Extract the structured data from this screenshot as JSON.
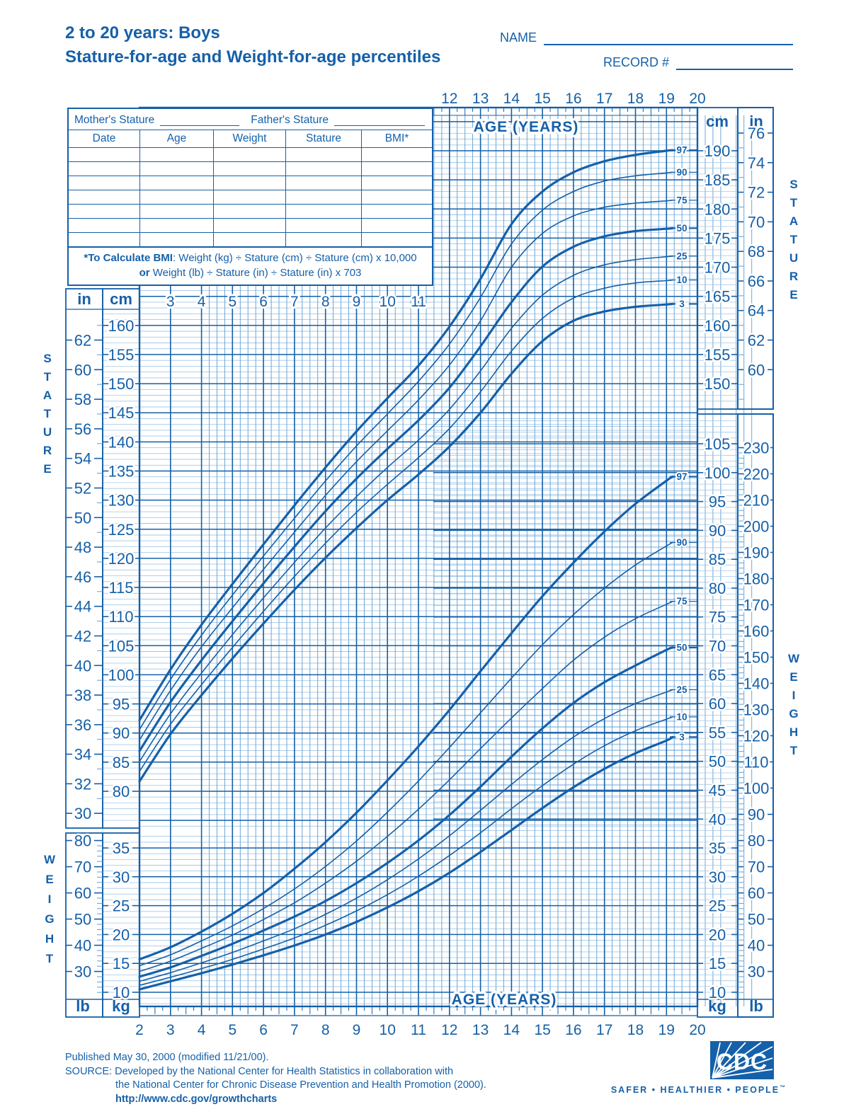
{
  "header": {
    "title_line1": "2 to 20 years: Boys",
    "title_line2": "Stature-for-age and Weight-for-age percentiles",
    "name_label": "NAME",
    "record_label": "RECORD #"
  },
  "patient_table": {
    "mothers_stature_label": "Mother's Stature",
    "fathers_stature_label": "Father's Stature",
    "columns": [
      "Date",
      "Age",
      "Weight",
      "Stature",
      "BMI*"
    ],
    "empty_row_count": 7,
    "bmi_note": {
      "bold1": "*To Calculate BMI",
      "rest1": ": Weight (kg) ÷ Stature (cm) ÷ Stature (cm) x 10,000",
      "bold2": "or",
      "rest2": " Weight (lb) ÷ Stature (in) ÷ Stature (in) x 703"
    }
  },
  "axis": {
    "age_label_top": "AGE (YEARS)",
    "age_label_bottom": "AGE (YEARS)",
    "stature_side_label": "STATURE",
    "weight_side_label": "WEIGHT",
    "units": {
      "cm": "cm",
      "in": "in",
      "kg": "kg",
      "lb": "lb"
    }
  },
  "footer": {
    "published": "Published May 30, 2000 (modified 11/21/00).",
    "source_line1": "SOURCE: Developed by the National Center for Health Statistics in collaboration with",
    "source_line2": "the National Center for Chronic Disease Prevention and Health Promotion (2000).",
    "url": "http://www.cdc.gov/growthcharts"
  },
  "logo": {
    "text": "CDC",
    "tagline": "SAFER • HEALTHIER • PEOPLE",
    "tm": "™"
  },
  "colors": {
    "ink": "#1560a9",
    "grid_minor_h": "#a3c8e8",
    "grid_minor_v": "#5d9dd2",
    "background": "#ffffff"
  },
  "chart_data": [
    {
      "type": "line",
      "title": "Stature-for-age percentiles, boys 2 to 20 years",
      "xlabel": "AGE (YEARS)",
      "ylabel": "STATURE",
      "x_range_years": [
        2,
        20
      ],
      "axes": {
        "top_ages": {
          "min": 12,
          "max": 20,
          "step": 1
        },
        "mid_ages": {
          "min": 3,
          "max": 11,
          "step": 1
        },
        "left_cm": {
          "min": 80,
          "max": 160,
          "step": 5
        },
        "left_in": {
          "min": 30,
          "max": 62,
          "step": 2
        },
        "right_cm": {
          "min": 150,
          "max": 190,
          "step": 5
        },
        "right_in": {
          "min": 60,
          "max": 76,
          "step": 2
        }
      },
      "ages": [
        2,
        3,
        4,
        5,
        6,
        7,
        8,
        9,
        10,
        11,
        12,
        13,
        14,
        15,
        16,
        17,
        18,
        19,
        19.2
      ],
      "series": [
        {
          "name": "97th percentile",
          "label": "97",
          "bold": true,
          "values_cm": [
            92.2,
            100.9,
            108.6,
            115.6,
            122.4,
            129.1,
            135.6,
            141.8,
            147.5,
            153.1,
            159.8,
            168.0,
            177.4,
            183.0,
            186.3,
            188.2,
            189.3,
            190.0,
            190.1
          ]
        },
        {
          "name": "90th percentile",
          "label": "90",
          "bold": false,
          "values_cm": [
            90.6,
            99.2,
            106.8,
            113.7,
            120.4,
            126.9,
            133.3,
            139.3,
            144.8,
            150.4,
            156.8,
            164.8,
            174.0,
            179.8,
            183.0,
            184.8,
            185.7,
            186.2,
            186.3
          ]
        },
        {
          "name": "75th percentile",
          "label": "75",
          "bold": false,
          "values_cm": [
            88.8,
            97.3,
            104.8,
            111.5,
            118.1,
            124.5,
            130.8,
            136.6,
            141.9,
            147.2,
            153.2,
            160.8,
            170.0,
            175.8,
            178.8,
            180.3,
            181.0,
            181.4,
            181.5
          ]
        },
        {
          "name": "50th percentile",
          "label": "50",
          "bold": true,
          "values_cm": [
            86.9,
            95.3,
            102.5,
            109.2,
            115.7,
            122.0,
            128.1,
            133.7,
            138.8,
            143.7,
            149.3,
            156.4,
            164.0,
            170.1,
            173.5,
            175.3,
            176.2,
            176.6,
            176.7
          ]
        },
        {
          "name": "25th percentile",
          "label": "25",
          "bold": false,
          "values_cm": [
            85.1,
            93.3,
            100.3,
            106.9,
            113.2,
            119.3,
            125.2,
            130.6,
            135.6,
            140.3,
            145.6,
            152.2,
            159.5,
            165.2,
            168.6,
            170.4,
            171.3,
            171.8,
            171.9
          ]
        },
        {
          "name": "10th percentile",
          "label": "10",
          "bold": false,
          "values_cm": [
            83.4,
            91.5,
            98.3,
            104.7,
            110.9,
            116.9,
            122.6,
            127.9,
            132.7,
            137.3,
            142.3,
            148.6,
            155.6,
            161.2,
            164.7,
            166.4,
            167.3,
            167.7,
            167.8
          ]
        },
        {
          "name": "3rd percentile",
          "label": "3",
          "bold": true,
          "values_cm": [
            81.7,
            89.8,
            96.5,
            102.8,
            108.8,
            114.6,
            120.1,
            125.2,
            130.0,
            134.4,
            139.2,
            145.0,
            151.7,
            157.3,
            160.8,
            162.4,
            163.2,
            163.6,
            163.7
          ]
        }
      ]
    },
    {
      "type": "line",
      "title": "Weight-for-age percentiles, boys 2 to 20 years",
      "xlabel": "AGE (YEARS)",
      "ylabel": "WEIGHT",
      "x_range_years": [
        2,
        20
      ],
      "axes": {
        "bottom_ages": {
          "min": 2,
          "max": 20,
          "step": 1
        },
        "left_kg": {
          "min": 10,
          "max": 35,
          "step": 5
        },
        "left_lb": {
          "min": 30,
          "max": 80,
          "step": 10
        },
        "right_kg": {
          "min": 10,
          "max": 105,
          "step": 5
        },
        "right_lb": {
          "min": 30,
          "max": 230,
          "step": 10
        }
      },
      "ages": [
        2,
        3,
        4,
        5,
        6,
        7,
        8,
        9,
        10,
        11,
        12,
        13,
        14,
        15,
        16,
        17,
        18,
        19,
        19.2
      ],
      "series": [
        {
          "name": "97th percentile",
          "label": "97",
          "bold": true,
          "values_kg": [
            15.7,
            17.8,
            20.5,
            23.6,
            27.2,
            31.4,
            36.0,
            41.1,
            46.7,
            52.6,
            58.9,
            65.6,
            72.2,
            78.6,
            84.4,
            89.8,
            94.6,
            98.6,
            99.3
          ]
        },
        {
          "name": "90th percentile",
          "label": "90",
          "bold": false,
          "values_kg": [
            14.6,
            16.5,
            18.9,
            21.5,
            24.5,
            27.9,
            31.8,
            36.2,
            41.2,
            46.6,
            52.4,
            58.4,
            64.4,
            70.2,
            75.4,
            80.0,
            84.0,
            87.3,
            87.9
          ]
        },
        {
          "name": "75th percentile",
          "label": "75",
          "bold": false,
          "values_kg": [
            13.6,
            15.4,
            17.6,
            19.9,
            22.6,
            25.5,
            28.9,
            32.7,
            37.0,
            41.7,
            46.8,
            52.2,
            57.5,
            62.6,
            67.5,
            71.5,
            74.7,
            77.2,
            77.7
          ]
        },
        {
          "name": "50th percentile",
          "label": "50",
          "bold": true,
          "values_kg": [
            12.7,
            14.3,
            16.3,
            18.4,
            20.7,
            23.1,
            25.8,
            28.9,
            32.4,
            36.3,
            40.7,
            45.6,
            50.8,
            55.7,
            60.1,
            63.7,
            66.6,
            69.3,
            69.7
          ]
        },
        {
          "name": "25th percentile",
          "label": "25",
          "bold": false,
          "values_kg": [
            11.9,
            13.4,
            15.1,
            16.9,
            18.9,
            21.0,
            23.5,
            26.3,
            29.5,
            33.1,
            37.1,
            41.5,
            46.0,
            50.3,
            54.2,
            57.4,
            60.0,
            62.0,
            62.4
          ]
        },
        {
          "name": "10th percentile",
          "label": "10",
          "bold": false,
          "values_kg": [
            11.2,
            12.6,
            14.1,
            15.7,
            17.5,
            19.4,
            21.6,
            24.1,
            26.9,
            30.1,
            33.7,
            37.6,
            41.8,
            45.8,
            49.5,
            52.7,
            55.3,
            57.3,
            57.7
          ]
        },
        {
          "name": "3rd percentile",
          "label": "3",
          "bold": true,
          "values_kg": [
            10.5,
            11.9,
            13.3,
            14.8,
            16.4,
            18.1,
            20.0,
            22.2,
            24.7,
            27.5,
            30.7,
            34.3,
            38.1,
            41.9,
            45.5,
            48.7,
            51.4,
            53.6,
            54.2
          ]
        }
      ]
    }
  ]
}
